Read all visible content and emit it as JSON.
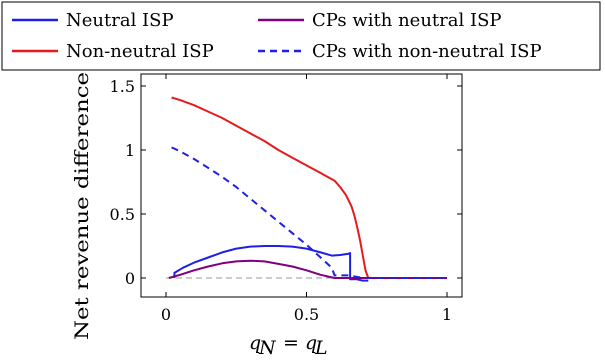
{
  "chart_data": {
    "type": "line",
    "xlabel": "q_N = q_L",
    "ylabel": "Net revenue difference",
    "xlim": [
      0,
      1
    ],
    "ylim": [
      -0.05,
      1.55
    ],
    "xticks": [
      0,
      0.5,
      1
    ],
    "xtick_labels": [
      "0",
      "0.5",
      "1"
    ],
    "yticks": [
      0,
      0.5,
      1,
      1.5
    ],
    "ytick_labels": [
      "0",
      "0.5",
      "1",
      "1.5"
    ],
    "grid": false,
    "legend_placement": "top, outside the axes, two columns",
    "reference_line": {
      "y": 0,
      "color": "#999999",
      "style": "dashed"
    },
    "series": [
      {
        "name": "Neutral ISP",
        "color": "#1f1fe6",
        "style": "solid",
        "x": [
          0.03,
          0.03,
          0.06,
          0.1,
          0.15,
          0.2,
          0.25,
          0.3,
          0.35,
          0.4,
          0.45,
          0.5,
          0.55,
          0.59,
          0.62,
          0.65,
          0.655,
          0.655,
          0.68,
          0.7,
          0.72
        ],
        "y": [
          0.0,
          0.04,
          0.08,
          0.12,
          0.16,
          0.2,
          0.23,
          0.245,
          0.25,
          0.25,
          0.245,
          0.23,
          0.2,
          0.175,
          0.18,
          0.19,
          0.195,
          -0.01,
          -0.01,
          -0.02,
          -0.02
        ]
      },
      {
        "name": "Non-neutral ISP",
        "color": "#e61a1a",
        "style": "solid",
        "x": [
          0.02,
          0.05,
          0.1,
          0.15,
          0.2,
          0.25,
          0.3,
          0.35,
          0.4,
          0.45,
          0.5,
          0.55,
          0.6,
          0.62,
          0.64,
          0.66,
          0.67,
          0.68,
          0.69,
          0.7,
          0.71,
          0.72
        ],
        "y": [
          1.41,
          1.39,
          1.35,
          1.3,
          1.25,
          1.19,
          1.13,
          1.07,
          1.0,
          0.94,
          0.88,
          0.82,
          0.76,
          0.71,
          0.65,
          0.56,
          0.49,
          0.4,
          0.3,
          0.18,
          0.06,
          0.0
        ]
      },
      {
        "name": "CPs with neutral ISP",
        "color": "#800080",
        "style": "solid",
        "x": [
          0.01,
          0.05,
          0.1,
          0.15,
          0.2,
          0.25,
          0.3,
          0.35,
          0.4,
          0.45,
          0.5,
          0.55,
          0.6,
          0.65,
          0.7,
          0.75,
          1.0
        ],
        "y": [
          0.0,
          0.025,
          0.06,
          0.09,
          0.115,
          0.13,
          0.135,
          0.13,
          0.11,
          0.09,
          0.06,
          0.025,
          0.0,
          0.0,
          0.0,
          0.0,
          0.0
        ]
      },
      {
        "name": "CPs with non-neutral ISP",
        "color": "#1f1fe6",
        "style": "dashed",
        "x": [
          0.02,
          0.05,
          0.1,
          0.15,
          0.2,
          0.25,
          0.3,
          0.35,
          0.4,
          0.45,
          0.5,
          0.55,
          0.59,
          0.6,
          0.65,
          0.7,
          0.75,
          1.0
        ],
        "y": [
          1.02,
          0.99,
          0.93,
          0.86,
          0.79,
          0.71,
          0.62,
          0.53,
          0.44,
          0.35,
          0.26,
          0.16,
          0.08,
          0.02,
          0.02,
          0.0,
          0.0,
          0.0
        ]
      }
    ]
  }
}
